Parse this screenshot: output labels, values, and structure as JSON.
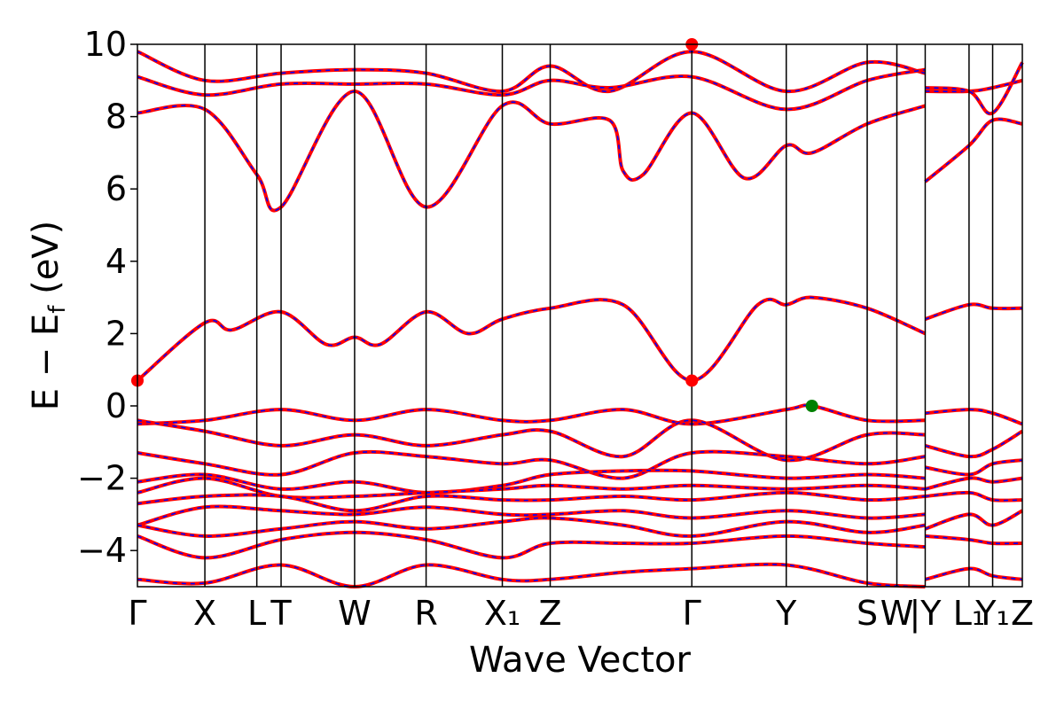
{
  "chart_data": {
    "type": "line",
    "xlabel": "Wave Vector",
    "ylabel": "E − E_f (eV)",
    "ylabel_main": "E − E",
    "ylabel_sub": "f",
    "ylabel_unit": " (eV)",
    "ylim": [
      -5,
      10
    ],
    "yticks": [
      -4,
      -2,
      0,
      2,
      4,
      6,
      8,
      10
    ],
    "ytick_labels": [
      "−4",
      "−2",
      "0",
      "2",
      "4",
      "6",
      "8",
      "10"
    ],
    "grid": false,
    "k_path": [
      {
        "label": "Γ",
        "k": 0.0
      },
      {
        "label": "X",
        "k": 0.5
      },
      {
        "label": "L",
        "k": 0.885
      },
      {
        "label": "T",
        "k": 1.065
      },
      {
        "label": "W",
        "k": 1.61
      },
      {
        "label": "R",
        "k": 2.14
      },
      {
        "label": "X₁",
        "k": 2.705
      },
      {
        "label": "Z",
        "k": 3.06
      },
      {
        "label": "Γ",
        "k": 4.11
      },
      {
        "label": "Y",
        "k": 4.81
      },
      {
        "label": "S",
        "k": 5.41
      },
      {
        "label": "W",
        "k": 5.63
      },
      {
        "label": "|Y",
        "k": 5.84
      },
      {
        "label": "L₁",
        "k": 6.165
      },
      {
        "label": "Y₁",
        "k": 6.34
      },
      {
        "label": "Z",
        "k": 6.56
      }
    ],
    "xlim": [
      0,
      6.56
    ],
    "markers": [
      {
        "k": 0.0,
        "E": 0.7,
        "color": "#ff0000"
      },
      {
        "k": 4.11,
        "E": 0.7,
        "color": "#ff0000"
      },
      {
        "k": 4.11,
        "E": 10.0,
        "color": "#ff0000"
      },
      {
        "k": 5.0,
        "E": 0.0,
        "color": "#008000"
      }
    ],
    "series_styles": {
      "line_color": "#ff0000",
      "dash_color": "#0000ff"
    },
    "bands": [
      {
        "segment": [
          0,
          5.84
        ],
        "points": [
          [
            0,
            9.8
          ],
          [
            0.5,
            9.0
          ],
          [
            1.065,
            9.2
          ],
          [
            1.61,
            9.3
          ],
          [
            2.14,
            9.2
          ],
          [
            2.705,
            8.7
          ],
          [
            3.06,
            9.4
          ],
          [
            3.5,
            8.7
          ],
          [
            4.11,
            9.8
          ],
          [
            4.81,
            8.7
          ],
          [
            5.41,
            9.5
          ],
          [
            5.84,
            9.2
          ]
        ]
      },
      {
        "segment": [
          0,
          5.84
        ],
        "points": [
          [
            0,
            9.1
          ],
          [
            0.5,
            8.6
          ],
          [
            1.065,
            8.9
          ],
          [
            1.61,
            8.9
          ],
          [
            2.14,
            8.9
          ],
          [
            2.705,
            8.6
          ],
          [
            3.06,
            9.0
          ],
          [
            3.5,
            8.8
          ],
          [
            4.11,
            9.1
          ],
          [
            4.81,
            8.2
          ],
          [
            5.41,
            9.0
          ],
          [
            5.84,
            9.3
          ]
        ]
      },
      {
        "segment": [
          0,
          5.84
        ],
        "points": [
          [
            0,
            8.1
          ],
          [
            0.5,
            8.2
          ],
          [
            0.885,
            6.4
          ],
          [
            1.065,
            5.5
          ],
          [
            1.61,
            8.7
          ],
          [
            2.14,
            5.5
          ],
          [
            2.705,
            8.3
          ],
          [
            3.06,
            7.8
          ],
          [
            3.5,
            7.9
          ],
          [
            3.6,
            6.5
          ],
          [
            3.75,
            6.4
          ],
          [
            4.11,
            8.1
          ],
          [
            4.5,
            6.3
          ],
          [
            4.81,
            7.2
          ],
          [
            5.0,
            7.0
          ],
          [
            5.41,
            7.8
          ],
          [
            5.84,
            8.3
          ]
        ]
      },
      {
        "segment": [
          0,
          5.84
        ],
        "points": [
          [
            0,
            0.7
          ],
          [
            0.5,
            2.3
          ],
          [
            0.7,
            2.1
          ],
          [
            1.065,
            2.6
          ],
          [
            1.4,
            1.7
          ],
          [
            1.61,
            1.9
          ],
          [
            1.8,
            1.7
          ],
          [
            2.14,
            2.6
          ],
          [
            2.45,
            2.0
          ],
          [
            2.705,
            2.4
          ],
          [
            3.06,
            2.7
          ],
          [
            3.6,
            2.8
          ],
          [
            4.11,
            0.7
          ],
          [
            4.6,
            2.8
          ],
          [
            4.81,
            2.8
          ],
          [
            5.0,
            3.0
          ],
          [
            5.41,
            2.7
          ],
          [
            5.84,
            2.0
          ]
        ]
      },
      {
        "segment": [
          0,
          5.84
        ],
        "points": [
          [
            0,
            -0.5
          ],
          [
            0.5,
            -0.4
          ],
          [
            1.065,
            -0.1
          ],
          [
            1.61,
            -0.4
          ],
          [
            2.14,
            -0.1
          ],
          [
            2.705,
            -0.4
          ],
          [
            3.06,
            -0.4
          ],
          [
            3.6,
            -0.1
          ],
          [
            4.11,
            -0.5
          ],
          [
            4.81,
            -0.1
          ],
          [
            5.0,
            0.0
          ],
          [
            5.41,
            -0.4
          ],
          [
            5.84,
            -0.4
          ]
        ]
      },
      {
        "segment": [
          0,
          5.84
        ],
        "points": [
          [
            0,
            -0.4
          ],
          [
            0.5,
            -0.7
          ],
          [
            1.065,
            -1.1
          ],
          [
            1.61,
            -0.8
          ],
          [
            2.14,
            -1.1
          ],
          [
            2.705,
            -0.8
          ],
          [
            3.06,
            -0.7
          ],
          [
            3.6,
            -1.4
          ],
          [
            4.11,
            -0.4
          ],
          [
            4.81,
            -1.5
          ],
          [
            5.41,
            -0.8
          ],
          [
            5.84,
            -0.8
          ]
        ]
      },
      {
        "segment": [
          0,
          5.84
        ],
        "points": [
          [
            0,
            -1.3
          ],
          [
            0.5,
            -1.6
          ],
          [
            1.065,
            -1.9
          ],
          [
            1.61,
            -1.3
          ],
          [
            2.14,
            -1.4
          ],
          [
            2.705,
            -1.6
          ],
          [
            3.06,
            -1.5
          ],
          [
            3.6,
            -2.0
          ],
          [
            4.11,
            -1.3
          ],
          [
            4.81,
            -1.4
          ],
          [
            5.41,
            -1.6
          ],
          [
            5.84,
            -1.4
          ]
        ]
      },
      {
        "segment": [
          0,
          5.84
        ],
        "points": [
          [
            0,
            -2.1
          ],
          [
            0.5,
            -1.9
          ],
          [
            1.065,
            -2.3
          ],
          [
            1.61,
            -2.1
          ],
          [
            2.14,
            -2.4
          ],
          [
            2.705,
            -2.2
          ],
          [
            3.06,
            -1.9
          ],
          [
            3.6,
            -1.8
          ],
          [
            4.11,
            -1.8
          ],
          [
            4.81,
            -2.0
          ],
          [
            5.41,
            -1.9
          ],
          [
            5.84,
            -2.0
          ]
        ]
      },
      {
        "segment": [
          0,
          5.84
        ],
        "points": [
          [
            0,
            -2.4
          ],
          [
            0.5,
            -2.0
          ],
          [
            1.065,
            -2.5
          ],
          [
            1.61,
            -2.5
          ],
          [
            2.14,
            -2.4
          ],
          [
            2.705,
            -2.3
          ],
          [
            3.06,
            -2.2
          ],
          [
            3.6,
            -2.3
          ],
          [
            4.11,
            -2.2
          ],
          [
            4.81,
            -2.3
          ],
          [
            5.41,
            -2.2
          ],
          [
            5.84,
            -2.3
          ]
        ]
      },
      {
        "segment": [
          0,
          5.84
        ],
        "points": [
          [
            0,
            -2.7
          ],
          [
            0.5,
            -2.5
          ],
          [
            1.065,
            -2.5
          ],
          [
            1.61,
            -2.9
          ],
          [
            2.14,
            -2.5
          ],
          [
            2.705,
            -2.6
          ],
          [
            3.06,
            -2.6
          ],
          [
            3.6,
            -2.5
          ],
          [
            4.11,
            -2.6
          ],
          [
            4.81,
            -2.4
          ],
          [
            5.41,
            -2.6
          ],
          [
            5.84,
            -2.5
          ]
        ]
      },
      {
        "segment": [
          0,
          5.84
        ],
        "points": [
          [
            0,
            -3.3
          ],
          [
            0.5,
            -2.8
          ],
          [
            1.065,
            -2.9
          ],
          [
            1.61,
            -3.0
          ],
          [
            2.14,
            -2.8
          ],
          [
            2.705,
            -3.0
          ],
          [
            3.06,
            -3.0
          ],
          [
            3.6,
            -2.9
          ],
          [
            4.11,
            -3.1
          ],
          [
            4.81,
            -2.9
          ],
          [
            5.41,
            -3.1
          ],
          [
            5.84,
            -3.0
          ]
        ]
      },
      {
        "segment": [
          0,
          5.84
        ],
        "points": [
          [
            0,
            -3.3
          ],
          [
            0.5,
            -3.6
          ],
          [
            1.065,
            -3.4
          ],
          [
            1.61,
            -3.2
          ],
          [
            2.14,
            -3.4
          ],
          [
            2.705,
            -3.2
          ],
          [
            3.06,
            -3.1
          ],
          [
            3.6,
            -3.3
          ],
          [
            4.11,
            -3.6
          ],
          [
            4.81,
            -3.2
          ],
          [
            5.41,
            -3.5
          ],
          [
            5.84,
            -3.3
          ]
        ]
      },
      {
        "segment": [
          0,
          5.84
        ],
        "points": [
          [
            0,
            -3.6
          ],
          [
            0.5,
            -4.2
          ],
          [
            1.065,
            -3.7
          ],
          [
            1.61,
            -3.5
          ],
          [
            2.14,
            -3.7
          ],
          [
            2.705,
            -4.2
          ],
          [
            3.06,
            -3.8
          ],
          [
            3.6,
            -3.8
          ],
          [
            4.11,
            -3.8
          ],
          [
            4.81,
            -3.6
          ],
          [
            5.41,
            -3.8
          ],
          [
            5.84,
            -3.9
          ]
        ]
      },
      {
        "segment": [
          0,
          5.84
        ],
        "points": [
          [
            0,
            -4.8
          ],
          [
            0.5,
            -4.9
          ],
          [
            1.065,
            -4.4
          ],
          [
            1.61,
            -5.0
          ],
          [
            2.14,
            -4.4
          ],
          [
            2.705,
            -4.8
          ],
          [
            3.06,
            -4.8
          ],
          [
            3.6,
            -4.6
          ],
          [
            4.11,
            -4.5
          ],
          [
            4.81,
            -4.4
          ],
          [
            5.41,
            -4.9
          ],
          [
            5.84,
            -5.0
          ]
        ]
      },
      {
        "segment": [
          5.84,
          6.56
        ],
        "points": [
          [
            5.84,
            8.7
          ],
          [
            6.165,
            8.7
          ],
          [
            6.34,
            8.8
          ],
          [
            6.56,
            9.0
          ]
        ]
      },
      {
        "segment": [
          5.84,
          6.56
        ],
        "points": [
          [
            5.84,
            8.8
          ],
          [
            6.165,
            8.7
          ],
          [
            6.34,
            8.1
          ],
          [
            6.56,
            9.5
          ]
        ]
      },
      {
        "segment": [
          5.84,
          6.56
        ],
        "points": [
          [
            5.84,
            6.2
          ],
          [
            6.165,
            7.2
          ],
          [
            6.34,
            7.9
          ],
          [
            6.56,
            7.8
          ]
        ]
      },
      {
        "segment": [
          5.84,
          6.56
        ],
        "points": [
          [
            5.84,
            2.4
          ],
          [
            6.165,
            2.8
          ],
          [
            6.34,
            2.7
          ],
          [
            6.56,
            2.7
          ]
        ]
      },
      {
        "segment": [
          5.84,
          6.56
        ],
        "points": [
          [
            5.84,
            -0.2
          ],
          [
            6.165,
            -0.1
          ],
          [
            6.34,
            -0.2
          ],
          [
            6.56,
            -0.5
          ]
        ]
      },
      {
        "segment": [
          5.84,
          6.56
        ],
        "points": [
          [
            5.84,
            -1.1
          ],
          [
            6.165,
            -1.4
          ],
          [
            6.34,
            -1.2
          ],
          [
            6.56,
            -0.7
          ]
        ]
      },
      {
        "segment": [
          5.84,
          6.56
        ],
        "points": [
          [
            5.84,
            -1.7
          ],
          [
            6.165,
            -1.9
          ],
          [
            6.34,
            -1.6
          ],
          [
            6.56,
            -1.5
          ]
        ]
      },
      {
        "segment": [
          5.84,
          6.56
        ],
        "points": [
          [
            5.84,
            -2.3
          ],
          [
            6.165,
            -2.0
          ],
          [
            6.34,
            -2.1
          ],
          [
            6.56,
            -2.0
          ]
        ]
      },
      {
        "segment": [
          5.84,
          6.56
        ],
        "points": [
          [
            5.84,
            -2.5
          ],
          [
            6.165,
            -2.4
          ],
          [
            6.34,
            -2.6
          ],
          [
            6.56,
            -2.6
          ]
        ]
      },
      {
        "segment": [
          5.84,
          6.56
        ],
        "points": [
          [
            5.84,
            -3.4
          ],
          [
            6.165,
            -3.0
          ],
          [
            6.34,
            -3.3
          ],
          [
            6.56,
            -2.9
          ]
        ]
      },
      {
        "segment": [
          5.84,
          6.56
        ],
        "points": [
          [
            5.84,
            -3.6
          ],
          [
            6.165,
            -3.7
          ],
          [
            6.34,
            -3.8
          ],
          [
            6.56,
            -3.8
          ]
        ]
      },
      {
        "segment": [
          5.84,
          6.56
        ],
        "points": [
          [
            5.84,
            -4.8
          ],
          [
            6.165,
            -4.5
          ],
          [
            6.34,
            -4.7
          ],
          [
            6.56,
            -4.8
          ]
        ]
      }
    ]
  }
}
